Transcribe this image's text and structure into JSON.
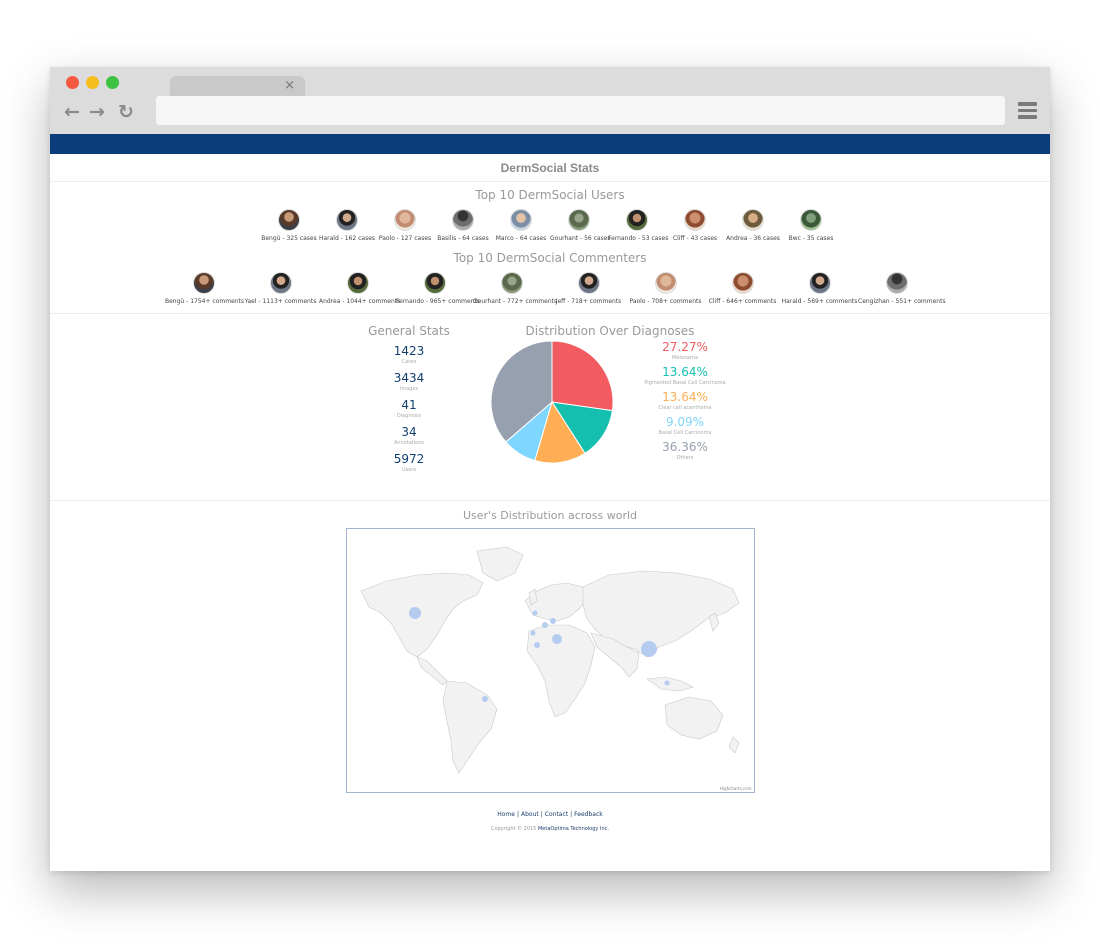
{
  "page": {
    "title": "DermSocial Stats",
    "top_users_title": "Top 10 DermSocial Users",
    "top_commenters_title": "Top 10 DermSocial Commenters",
    "general_title": "General Stats",
    "distribution_title": "Distribution Over Diagnoses",
    "map_title": "User's Distribution across world",
    "map_credit": "Highcharts.com"
  },
  "top_users": [
    "Bengü - 325 cases",
    "Harald - 162 cases",
    "Paolo - 127 cases",
    "Basilis - 64 cases",
    "Marco - 64 cases",
    "Gourhant - 56 cases",
    "Fernando - 53 cases",
    "Cliff - 43 cases",
    "Andrea - 36 cases",
    "Bwc - 35 cases"
  ],
  "top_commenters": [
    "Bengü - 1754+ comments",
    "Yael - 1113+ comments",
    "Andrea - 1044+ comments",
    "Fernando - 965+ comments",
    "Gourhant - 772+ comments",
    "Jeff - 718+ comments",
    "Paolo - 708+ comments",
    "Cliff - 646+ comments",
    "Harald - 569+ comments",
    "Cengizhan - 551+ comments"
  ],
  "general_stats": [
    {
      "value": "1423",
      "label": "Cases"
    },
    {
      "value": "3434",
      "label": "Images"
    },
    {
      "value": "41",
      "label": "Diagnosis"
    },
    {
      "value": "34",
      "label": "Annotations"
    },
    {
      "value": "5972",
      "label": "Users"
    }
  ],
  "chart_data": {
    "type": "pie",
    "title": "Distribution Over Diagnoses",
    "slices": [
      {
        "label": "Melonama",
        "value": 27.27,
        "display": "27.27%",
        "color": "#f25b60"
      },
      {
        "label": "Pigmented Basal Cell Carcinoma",
        "value": 13.64,
        "display": "13.64%",
        "color": "#14bfae"
      },
      {
        "label": "Clear cell acanthoma",
        "value": 13.64,
        "display": "13.64%",
        "color": "#ffae55"
      },
      {
        "label": "Basal Cell Carcinoma",
        "value": 9.09,
        "display": "9.09%",
        "color": "#7fd6ff"
      },
      {
        "label": "Others",
        "value": 36.36,
        "display": "36.36%",
        "color": "#96a0ae"
      }
    ]
  },
  "footer": {
    "links": [
      "Home",
      "About",
      "Contact",
      "Feedback"
    ],
    "copyright_prefix": "Copyright © 2015 ",
    "company": "MetaOptima Technology Inc."
  },
  "colors": {
    "topbar": "#0b3d7a",
    "accent_number": "#123f6f",
    "map_land": "#f2f2f2",
    "map_bubble": "#a9c6ee"
  }
}
